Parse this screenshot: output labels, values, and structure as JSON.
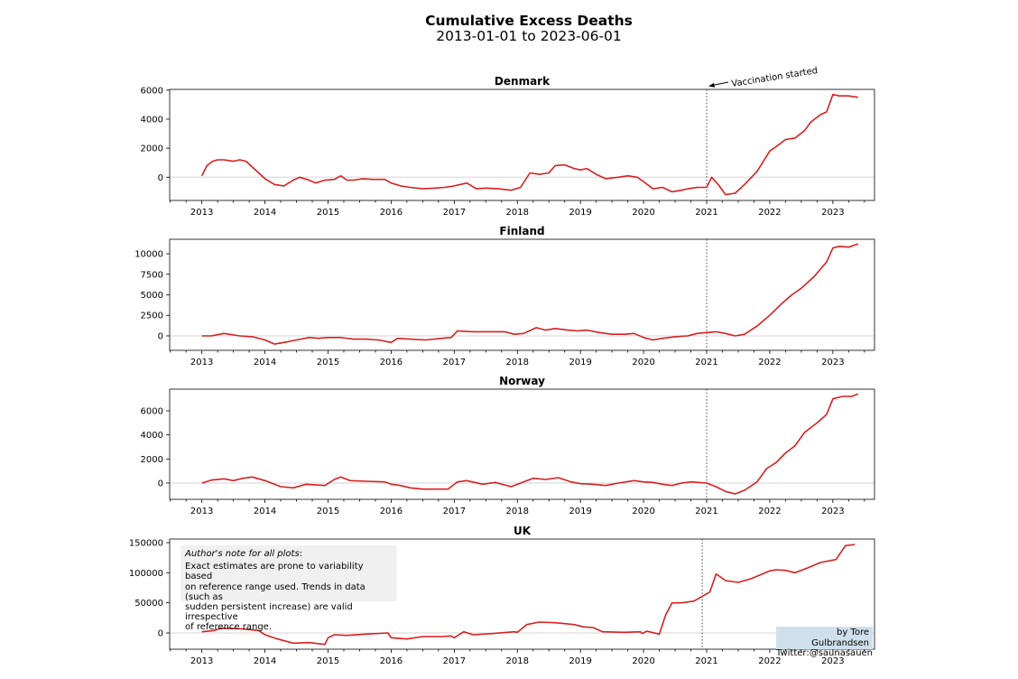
{
  "figure": {
    "title": "Cumulative Excess Deaths",
    "subtitle": "2013-01-01 to 2023-06-01",
    "note_title": "Author's note for all plots",
    "note_colon": ":",
    "note_lines": [
      "Exact estimates are prone to variability based",
      "on reference range used. Trends in data (such as",
      "sudden persistent increase) are valid irrespective",
      "of reference range."
    ],
    "credit_lines": [
      "by Tore Gulbrandsen",
      "Twitter:@saunasauen"
    ],
    "colors": {
      "line": "#d62020",
      "zero_line": "#dddddd",
      "vline": "#555555",
      "note_bg": "#f0f0f0",
      "credit_bg": "#cfe0ec"
    }
  },
  "chart_data": [
    {
      "type": "line",
      "title": "Denmark",
      "xlabel": "",
      "ylabel": "",
      "xlim": [
        2012.49,
        2023.66
      ],
      "ylim": [
        -1600,
        6050
      ],
      "xticks": [
        2013,
        2014,
        2015,
        2016,
        2017,
        2018,
        2019,
        2020,
        2021,
        2022,
        2023
      ],
      "yticks": [
        0,
        2000,
        4000,
        6000
      ],
      "grid": false,
      "zero_line": true,
      "vline": {
        "x": 2021.0,
        "style": "dotted",
        "annotation": "Vaccination started"
      },
      "series": [
        {
          "name": "Denmark",
          "x": [
            2013.0,
            2013.08,
            2013.17,
            2013.25,
            2013.35,
            2013.5,
            2013.6,
            2013.7,
            2013.8,
            2013.9,
            2014.0,
            2014.15,
            2014.3,
            2014.45,
            2014.55,
            2014.7,
            2014.8,
            2014.95,
            2015.1,
            2015.2,
            2015.3,
            2015.4,
            2015.55,
            2015.7,
            2015.9,
            2016.0,
            2016.15,
            2016.3,
            2016.5,
            2016.7,
            2016.85,
            2017.0,
            2017.2,
            2017.35,
            2017.5,
            2017.7,
            2017.9,
            2018.05,
            2018.2,
            2018.35,
            2018.5,
            2018.6,
            2018.75,
            2018.9,
            2019.0,
            2019.1,
            2019.25,
            2019.4,
            2019.6,
            2019.75,
            2019.9,
            2020.0,
            2020.15,
            2020.3,
            2020.45,
            2020.6,
            2020.7,
            2020.85,
            2021.0,
            2021.08,
            2021.2,
            2021.3,
            2021.45,
            2021.6,
            2021.8,
            2022.0,
            2022.1,
            2022.25,
            2022.4,
            2022.55,
            2022.65,
            2022.8,
            2022.9,
            2023.0,
            2023.1,
            2023.25,
            2023.4
          ],
          "y": [
            100,
            800,
            1100,
            1200,
            1200,
            1100,
            1200,
            1100,
            700,
            300,
            -100,
            -500,
            -600,
            -200,
            0,
            -200,
            -400,
            -200,
            -150,
            100,
            -200,
            -200,
            -100,
            -150,
            -150,
            -400,
            -600,
            -700,
            -800,
            -750,
            -700,
            -600,
            -400,
            -800,
            -750,
            -800,
            -900,
            -700,
            300,
            200,
            300,
            800,
            850,
            600,
            500,
            600,
            200,
            -100,
            0,
            100,
            0,
            -300,
            -800,
            -700,
            -1000,
            -900,
            -800,
            -700,
            -700,
            0,
            -600,
            -1200,
            -1100,
            -500,
            400,
            1800,
            2100,
            2600,
            2700,
            3200,
            3800,
            4300,
            4500,
            5700,
            5600,
            5600,
            5500
          ]
        }
      ]
    },
    {
      "type": "line",
      "title": "Finland",
      "xlabel": "",
      "ylabel": "",
      "xlim": [
        2012.49,
        2023.66
      ],
      "ylim": [
        -1760,
        11760
      ],
      "xticks": [
        2013,
        2014,
        2015,
        2016,
        2017,
        2018,
        2019,
        2020,
        2021,
        2022,
        2023
      ],
      "yticks": [
        0,
        2500,
        5000,
        7500,
        10000
      ],
      "grid": false,
      "zero_line": true,
      "vline": {
        "x": 2021.0,
        "style": "dotted"
      },
      "series": [
        {
          "name": "Finland",
          "x": [
            2013.0,
            2013.15,
            2013.35,
            2013.6,
            2013.8,
            2014.0,
            2014.15,
            2014.3,
            2014.5,
            2014.7,
            2014.85,
            2015.0,
            2015.2,
            2015.4,
            2015.6,
            2015.8,
            2016.0,
            2016.1,
            2016.3,
            2016.55,
            2016.8,
            2016.95,
            2017.05,
            2017.3,
            2017.55,
            2017.8,
            2017.95,
            2018.1,
            2018.3,
            2018.45,
            2018.6,
            2018.8,
            2018.95,
            2019.1,
            2019.3,
            2019.5,
            2019.7,
            2019.85,
            2020.0,
            2020.15,
            2020.3,
            2020.5,
            2020.7,
            2020.85,
            2021.0,
            2021.15,
            2021.3,
            2021.45,
            2021.6,
            2021.8,
            2022.0,
            2022.2,
            2022.35,
            2022.5,
            2022.7,
            2022.9,
            2023.0,
            2023.1,
            2023.25,
            2023.4
          ],
          "y": [
            0,
            0,
            300,
            0,
            -100,
            -500,
            -1000,
            -800,
            -500,
            -200,
            -300,
            -200,
            -200,
            -400,
            -400,
            -500,
            -800,
            -300,
            -400,
            -500,
            -300,
            -200,
            600,
            500,
            500,
            500,
            200,
            300,
            1000,
            700,
            900,
            700,
            600,
            700,
            400,
            200,
            200,
            300,
            -200,
            -500,
            -300,
            -100,
            0,
            300,
            400,
            500,
            300,
            0,
            200,
            1200,
            2500,
            4000,
            5000,
            5800,
            7200,
            9000,
            10700,
            10900,
            10800,
            11200
          ]
        }
      ]
    },
    {
      "type": "line",
      "title": "Norway",
      "xlabel": "",
      "ylabel": "",
      "xlim": [
        2012.49,
        2023.66
      ],
      "ylim": [
        -1350,
        7800
      ],
      "xticks": [
        2013,
        2014,
        2015,
        2016,
        2017,
        2018,
        2019,
        2020,
        2021,
        2022,
        2023
      ],
      "yticks": [
        0,
        2000,
        4000,
        6000
      ],
      "grid": false,
      "zero_line": true,
      "vline": {
        "x": 2021.0,
        "style": "dotted"
      },
      "series": [
        {
          "name": "Norway",
          "x": [
            2013.0,
            2013.15,
            2013.35,
            2013.5,
            2013.65,
            2013.8,
            2014.0,
            2014.25,
            2014.45,
            2014.65,
            2014.95,
            2015.1,
            2015.2,
            2015.35,
            2015.6,
            2015.9,
            2016.0,
            2016.15,
            2016.3,
            2016.5,
            2016.7,
            2016.9,
            2017.05,
            2017.2,
            2017.45,
            2017.65,
            2017.9,
            2018.1,
            2018.25,
            2018.45,
            2018.65,
            2018.85,
            2019.0,
            2019.2,
            2019.4,
            2019.6,
            2019.85,
            2020.0,
            2020.15,
            2020.3,
            2020.45,
            2020.6,
            2020.75,
            2021.0,
            2021.15,
            2021.3,
            2021.45,
            2021.6,
            2021.8,
            2021.95,
            2022.1,
            2022.25,
            2022.4,
            2022.55,
            2022.75,
            2022.9,
            2023.0,
            2023.15,
            2023.3,
            2023.4
          ],
          "y": [
            0,
            250,
            350,
            200,
            400,
            500,
            200,
            -300,
            -400,
            -100,
            -200,
            300,
            500,
            200,
            150,
            100,
            -100,
            -200,
            -400,
            -500,
            -500,
            -500,
            100,
            200,
            -100,
            50,
            -300,
            100,
            400,
            300,
            450,
            100,
            -50,
            -100,
            -200,
            0,
            200,
            100,
            50,
            -100,
            -200,
            0,
            100,
            0,
            -300,
            -700,
            -900,
            -600,
            100,
            1200,
            1700,
            2500,
            3100,
            4200,
            5000,
            5700,
            7000,
            7200,
            7200,
            7400
          ]
        }
      ]
    },
    {
      "type": "line",
      "title": "UK",
      "xlabel": "",
      "ylabel": "",
      "xlim": [
        2012.49,
        2023.66
      ],
      "ylim": [
        -27000,
        156000
      ],
      "xticks": [
        2013,
        2014,
        2015,
        2016,
        2017,
        2018,
        2019,
        2020,
        2021,
        2022,
        2023
      ],
      "yticks": [
        0,
        50000,
        100000,
        150000
      ],
      "grid": false,
      "zero_line": true,
      "vline": {
        "x": 2020.93,
        "style": "dotted"
      },
      "series": [
        {
          "name": "UK",
          "x": [
            2013.0,
            2013.2,
            2013.3,
            2013.6,
            2013.9,
            2014.0,
            2014.2,
            2014.45,
            2014.7,
            2014.95,
            2015.0,
            2015.1,
            2015.3,
            2015.6,
            2015.95,
            2016.0,
            2016.25,
            2016.5,
            2016.8,
            2016.95,
            2017.0,
            2017.15,
            2017.3,
            2017.6,
            2017.95,
            2018.0,
            2018.15,
            2018.35,
            2018.6,
            2018.9,
            2019.05,
            2019.2,
            2019.35,
            2019.7,
            2019.95,
            2019.98,
            2020.05,
            2020.25,
            2020.35,
            2020.45,
            2020.6,
            2020.8,
            2020.95,
            2021.05,
            2021.15,
            2021.3,
            2021.5,
            2021.7,
            2022.0,
            2022.1,
            2022.25,
            2022.4,
            2022.6,
            2022.8,
            2022.95,
            2023.05,
            2023.2,
            2023.35
          ],
          "y": [
            2000,
            4000,
            8000,
            7000,
            4000,
            -3000,
            -10000,
            -17000,
            -16000,
            -19000,
            -8000,
            -3000,
            -4000,
            -2000,
            0,
            -8000,
            -10000,
            -6000,
            -6000,
            -5000,
            -8000,
            2000,
            -3000,
            -1000,
            2000,
            1000,
            14000,
            18000,
            17000,
            14000,
            10000,
            9000,
            2000,
            1000,
            2000,
            -1000,
            3000,
            -2000,
            30000,
            50000,
            50000,
            53000,
            62000,
            68000,
            98000,
            87000,
            84000,
            90000,
            103000,
            105000,
            104000,
            100000,
            108000,
            117000,
            120000,
            122000,
            145000,
            147000
          ]
        }
      ]
    }
  ]
}
